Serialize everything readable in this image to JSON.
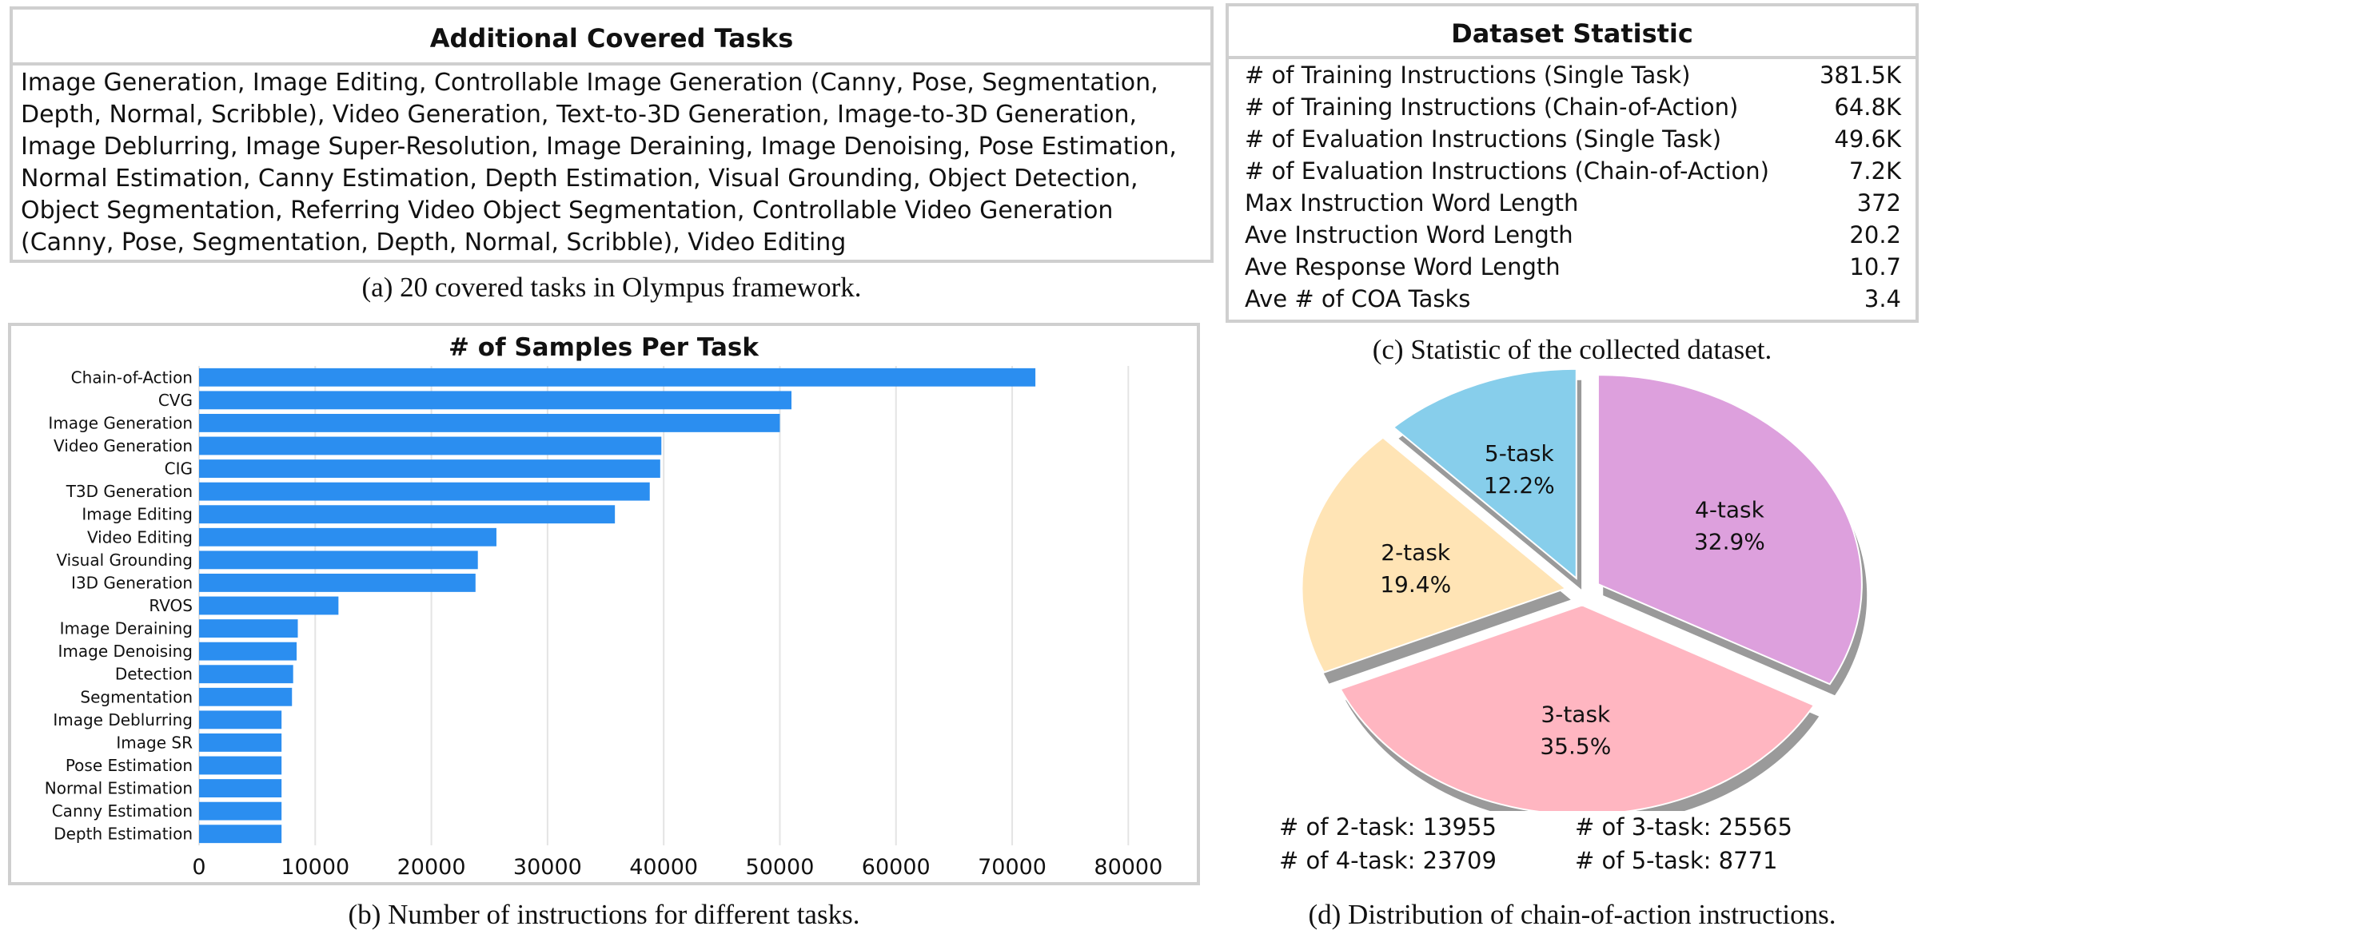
{
  "tasks_panel": {
    "title": "Additional Covered Tasks",
    "body": "Image Generation, Image Editing, Controllable Image Generation (Canny, Pose, Segmentation, Depth, Normal, Scribble), Video Generation, Text-to-3D Generation, Image-to-3D Generation, Image Deblurring, Image Super-Resolution, Image Deraining, Image Denoising, Pose Estimation, Normal Estimation, Canny Estimation, Depth Estimation, Visual Grounding, Object Detection, Object Segmentation, Referring Video Object Segmentation, Controllable Video Generation (Canny, Pose, Segmentation, Depth, Normal, Scribble), Video Editing"
  },
  "captions": {
    "a": "(a) 20 covered tasks in Olympus framework.",
    "b": "(b) Number of instructions for different tasks.",
    "c": "(c) Statistic of the collected dataset.",
    "d": "(d) Distribution of chain-of-action instructions."
  },
  "stats_panel": {
    "title": "Dataset Statistic",
    "rows": [
      {
        "label": "# of Training Instructions (Single Task)",
        "value": "381.5K"
      },
      {
        "label": "# of Training Instructions (Chain-of-Action)",
        "value": "64.8K"
      },
      {
        "label": "# of Evaluation Instructions (Single Task)",
        "value": "49.6K"
      },
      {
        "label": "# of Evaluation Instructions (Chain-of-Action)",
        "value": "7.2K"
      },
      {
        "label": "Max Instruction Word Length",
        "value": "372"
      },
      {
        "label": "Ave Instruction Word Length",
        "value": "20.2"
      },
      {
        "label": "Ave Response Word Length",
        "value": "10.7"
      },
      {
        "label": "Ave # of COA Tasks",
        "value": "3.4"
      }
    ]
  },
  "pie_counts": {
    "two": "# of 2-task: 13955",
    "three": "# of 3-task: 25565",
    "four": "# of 4-task: 23709",
    "five": "# of 5-task: 8771"
  },
  "colors": {
    "bar": "#2b8ef0",
    "grid": "#e4e4e4",
    "pie_shadow": "#9a9a9a"
  },
  "chart_data": [
    {
      "type": "bar",
      "orientation": "horizontal",
      "title": "# of Samples Per Task",
      "xlabel": "",
      "ylabel": "",
      "categories": [
        "Chain-of-Action",
        "CVG",
        "Image Generation",
        "Video Generation",
        "CIG",
        "T3D Generation",
        "Image Editing",
        "Video Editing",
        "Visual Grounding",
        "I3D Generation",
        "RVOS",
        "Image Deraining",
        "Image Denoising",
        "Detection",
        "Segmentation",
        "Image Deblurring",
        "Image SR",
        "Pose Estimation",
        "Normal Estimation",
        "Canny Estimation",
        "Depth Estimation"
      ],
      "values": [
        72000,
        51000,
        50000,
        39800,
        39700,
        38800,
        35800,
        25600,
        24000,
        23800,
        12000,
        8500,
        8400,
        8100,
        8000,
        7100,
        7100,
        7100,
        7100,
        7100,
        7100
      ],
      "xlim": [
        0,
        85000
      ],
      "xticks": [
        0,
        10000,
        20000,
        30000,
        40000,
        50000,
        60000,
        70000,
        80000
      ],
      "xtick_labels": [
        "0",
        "10000",
        "20000",
        "30000",
        "40000",
        "50000",
        "60000",
        "70000",
        "80000"
      ],
      "grid": "vertical",
      "bar_color": "#2b8ef0"
    },
    {
      "type": "pie",
      "title": "",
      "start_angle_deg": 90,
      "direction": "clockwise",
      "exploded": true,
      "slices": [
        {
          "label": "4-task",
          "percent_label": "32.9%",
          "value": 23709,
          "color": "#dda0dd"
        },
        {
          "label": "3-task",
          "percent_label": "35.5%",
          "value": 25565,
          "color": "#ffb6c1"
        },
        {
          "label": "2-task",
          "percent_label": "19.4%",
          "value": 13955,
          "color": "#ffe4b5"
        },
        {
          "label": "5-task",
          "percent_label": "12.2%",
          "value": 8771,
          "color": "#87ceeb"
        }
      ]
    }
  ]
}
